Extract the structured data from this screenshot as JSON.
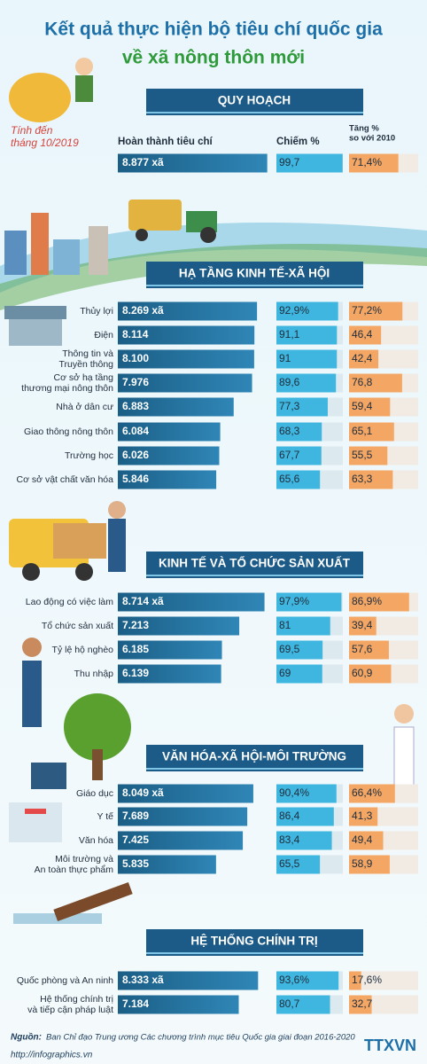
{
  "header": {
    "title": "Kết quả thực hiện bộ tiêu chí quốc gia",
    "subtitle": "về xã nông thôn mới"
  },
  "as_of": "Tính đến\ntháng 10/2019",
  "columns": {
    "count": "Hoàn thành tiêu chí",
    "percent": "Chiếm %",
    "increase": "Tăng %\nso với 2010"
  },
  "sections": [
    {
      "title": "QUY HOẠCH",
      "rows": [
        {
          "label": "",
          "count": 8877,
          "count_label": "8.877 xã",
          "percent": 99.7,
          "percent_label": "99,7",
          "increase": 71.4,
          "increase_label": "71,4%"
        }
      ]
    },
    {
      "title": "HẠ TẦNG KINH TẾ-XÃ HỘI",
      "rows": [
        {
          "label": "Thủy lợi",
          "count": 8269,
          "count_label": "8.269 xã",
          "percent": 92.9,
          "percent_label": "92,9%",
          "increase": 77.2,
          "increase_label": "77,2%"
        },
        {
          "label": "Điện",
          "count": 8114,
          "count_label": "8.114",
          "percent": 91.1,
          "percent_label": "91,1",
          "increase": 46.4,
          "increase_label": "46,4"
        },
        {
          "label": "Thông tin và\nTruyền thông",
          "count": 8100,
          "count_label": "8.100",
          "percent": 91,
          "percent_label": "91",
          "increase": 42.4,
          "increase_label": "42,4"
        },
        {
          "label": "Cơ sở hạ tầng\nthương mại nông thôn",
          "count": 7976,
          "count_label": "7.976",
          "percent": 89.6,
          "percent_label": "89,6",
          "increase": 76.8,
          "increase_label": "76,8"
        },
        {
          "label": "Nhà ở dân cư",
          "count": 6883,
          "count_label": "6.883",
          "percent": 77.3,
          "percent_label": "77,3",
          "increase": 59.4,
          "increase_label": "59,4"
        },
        {
          "label": "Giao thông nông thôn",
          "count": 6084,
          "count_label": "6.084",
          "percent": 68.3,
          "percent_label": "68,3",
          "increase": 65.1,
          "increase_label": "65,1"
        },
        {
          "label": "Trường học",
          "count": 6026,
          "count_label": "6.026",
          "percent": 67.7,
          "percent_label": "67,7",
          "increase": 55.5,
          "increase_label": "55,5"
        },
        {
          "label": "Cơ sở vật chất văn hóa",
          "count": 5846,
          "count_label": "5.846",
          "percent": 65.6,
          "percent_label": "65,6",
          "increase": 63.3,
          "increase_label": "63,3"
        }
      ]
    },
    {
      "title": "KINH TẾ VÀ TỔ CHỨC SẢN XUẤT",
      "rows": [
        {
          "label": "Lao động có việc làm",
          "count": 8714,
          "count_label": "8.714 xã",
          "percent": 97.9,
          "percent_label": "97,9%",
          "increase": 86.9,
          "increase_label": "86,9%"
        },
        {
          "label": "Tổ chức sản xuất",
          "count": 7213,
          "count_label": "7.213",
          "percent": 81,
          "percent_label": "81",
          "increase": 39.4,
          "increase_label": "39,4"
        },
        {
          "label": "Tỷ lệ hộ nghèo",
          "count": 6185,
          "count_label": "6.185",
          "percent": 69.5,
          "percent_label": "69,5",
          "increase": 57.6,
          "increase_label": "57,6"
        },
        {
          "label": "Thu nhập",
          "count": 6139,
          "count_label": "6.139",
          "percent": 69,
          "percent_label": "69",
          "increase": 60.9,
          "increase_label": "60,9"
        }
      ]
    },
    {
      "title": "VĂN HÓA-XÃ HỘI-MÔI TRƯỜNG",
      "rows": [
        {
          "label": "Giáo dục",
          "count": 8049,
          "count_label": "8.049 xã",
          "percent": 90.4,
          "percent_label": "90,4%",
          "increase": 66.4,
          "increase_label": "66,4%"
        },
        {
          "label": "Y tế",
          "count": 7689,
          "count_label": "7.689",
          "percent": 86.4,
          "percent_label": "86,4",
          "increase": 41.3,
          "increase_label": "41,3"
        },
        {
          "label": "Văn hóa",
          "count": 7425,
          "count_label": "7.425",
          "percent": 83.4,
          "percent_label": "83,4",
          "increase": 49.4,
          "increase_label": "49,4"
        },
        {
          "label": "Môi trường và\nAn toàn thực phẩm",
          "count": 5835,
          "count_label": "5.835",
          "percent": 65.5,
          "percent_label": "65,5",
          "increase": 58.9,
          "increase_label": "58,9"
        }
      ]
    },
    {
      "title": "HỆ THỐNG CHÍNH TRỊ",
      "rows": [
        {
          "label": "Quốc phòng và An ninh",
          "count": 8333,
          "count_label": "8.333 xã",
          "percent": 93.6,
          "percent_label": "93,6%",
          "increase": 17.6,
          "increase_label": "17,6%"
        },
        {
          "label": "Hệ thống chính trị\nvà tiếp cận pháp luật",
          "count": 7184,
          "count_label": "7.184",
          "percent": 80.7,
          "percent_label": "80,7",
          "increase": 32.7,
          "increase_label": "32,7"
        }
      ]
    }
  ],
  "footer": {
    "source_label": "Nguồn:",
    "source": "Ban Chỉ đạo Trung ương Các chương trình mục tiêu Quốc gia giai đoạn 2016-2020",
    "url": "http://infographics.vn",
    "logo": "TTXVN"
  }
}
